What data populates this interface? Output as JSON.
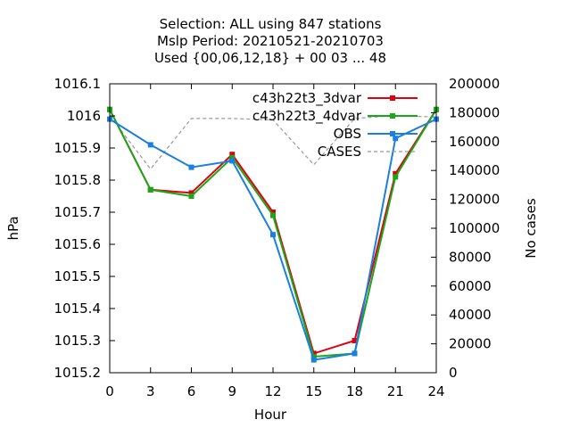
{
  "chart_data": {
    "type": "line",
    "title_lines": [
      "Selection: ALL using   847 stations",
      "Mslp   Period: 20210521-20210703",
      "Used {00,06,12,18} + 00 03 ... 48"
    ],
    "xlabel": "Hour",
    "ylabel": "hPa",
    "y2label": "No cases",
    "x": [
      0,
      3,
      6,
      9,
      12,
      15,
      18,
      21,
      24
    ],
    "xlim": [
      0,
      24
    ],
    "xticks": [
      "0",
      "3",
      "6",
      "9",
      "12",
      "15",
      "18",
      "21",
      "24"
    ],
    "ylim": [
      1015.2,
      1016.1
    ],
    "yticks": [
      "1015.2",
      "1015.3",
      "1015.4",
      "1015.5",
      "1015.6",
      "1015.7",
      "1015.8",
      "1015.9",
      "1016",
      "1016.1"
    ],
    "y2lim": [
      0,
      200000
    ],
    "y2ticks": [
      "0",
      "20000",
      "40000",
      "60000",
      "80000",
      "100000",
      "120000",
      "140000",
      "160000",
      "180000",
      "200000"
    ],
    "grid": false,
    "legend_position": "top-right",
    "series": [
      {
        "name": "c43h22t3_3dvar",
        "color": "#e0000f",
        "values": [
          1016.02,
          1015.77,
          1015.76,
          1015.88,
          1015.7,
          1015.26,
          1015.3,
          1015.82,
          1016.02
        ]
      },
      {
        "name": "c43h22t3_4dvar",
        "color": "#1aa81a",
        "values": [
          1016.02,
          1015.77,
          1015.75,
          1015.87,
          1015.69,
          1015.25,
          1015.26,
          1015.81,
          1016.02
        ]
      },
      {
        "name": "OBS",
        "color": "#1a7fe0",
        "values": [
          1015.99,
          1015.91,
          1015.84,
          1015.86,
          1015.63,
          1015.24,
          1015.26,
          1015.93,
          1015.99
        ]
      }
    ],
    "cases_series": {
      "name": "CASES",
      "color": "#999999",
      "axis": "right",
      "values": [
        178000,
        141000,
        176000,
        176000,
        175000,
        144000,
        176000,
        178000,
        177000
      ]
    }
  }
}
